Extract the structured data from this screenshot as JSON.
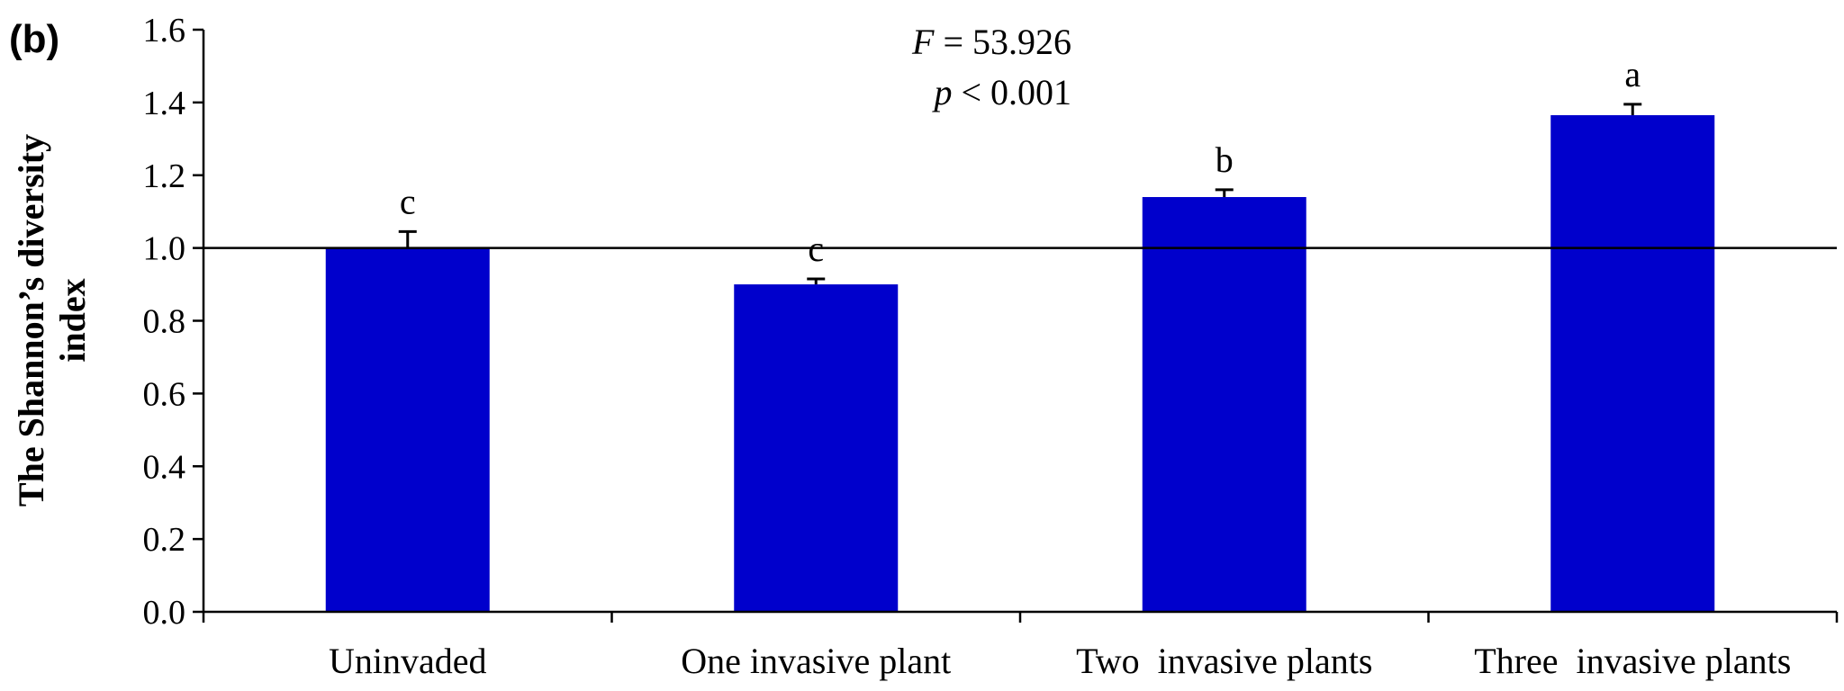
{
  "chart_data": {
    "type": "bar",
    "panel_label": "(b)",
    "ylabel_lines": [
      "The Shannon’s diversity",
      "index"
    ],
    "xlabel": "",
    "ylim": [
      0,
      1.6
    ],
    "yticks": [
      0.0,
      0.2,
      0.4,
      0.6,
      0.8,
      1.0,
      1.2,
      1.4,
      1.6
    ],
    "ytick_labels": [
      "0.0",
      "0.2",
      "0.4",
      "0.6",
      "0.8",
      "1.0",
      "1.2",
      "1.4",
      "1.6"
    ],
    "categories": [
      "Uninvaded",
      "One invasive plant",
      "Two  invasive plants",
      "Three  invasive plants"
    ],
    "values": [
      1.0,
      0.9,
      1.14,
      1.365
    ],
    "errors": [
      0.045,
      0.015,
      0.02,
      0.03
    ],
    "significance_letters": [
      "c",
      "c",
      "b",
      "a"
    ],
    "reference_line": 1.0,
    "stats": {
      "F_symbol": "F",
      "F_text": " = 53.926",
      "p_symbol": "p",
      "p_text": " < 0.001"
    },
    "bar_color": "#0000cc",
    "grid": false
  }
}
